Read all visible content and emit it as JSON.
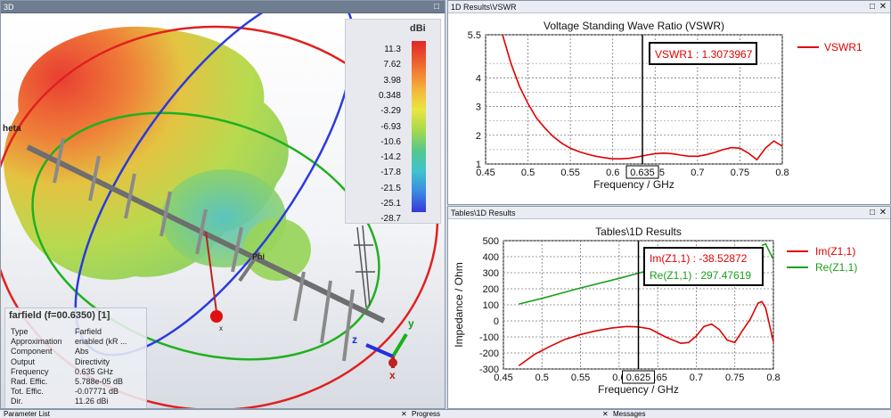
{
  "panes": {
    "view3d": {
      "title": "3D",
      "restore_icon": "□"
    },
    "vswr": {
      "title": "1D Results\\VSWR",
      "restore_icon": "□",
      "close_icon": "✕"
    },
    "tables": {
      "title": "Tables\\1D Results",
      "restore_icon": "□",
      "close_icon": "✕"
    }
  },
  "legend": {
    "unit": "dBi",
    "ticks": [
      "11.3",
      "7.62",
      "3.98",
      "0.348",
      "-3.29",
      "-6.93",
      "-10.6",
      "-14.2",
      "-17.8",
      "-21.5",
      "-25.1",
      "-28.7"
    ]
  },
  "scene_labels": {
    "theta": "heta",
    "phi": "Phi",
    "x_axis": "x",
    "y_axis": "y",
    "z_axis": "z",
    "x_small": "x"
  },
  "farfield": {
    "title": "farfield (f=00.6350) [1]",
    "rows": [
      {
        "label": "Type",
        "value": "Farfield"
      },
      {
        "label": "Approximation",
        "value": "enabled (kR ..."
      },
      {
        "label": "Component",
        "value": "Abs"
      },
      {
        "label": "Output",
        "value": "Directivity"
      },
      {
        "label": "Frequency",
        "value": "0.635 GHz"
      },
      {
        "label": "Rad. Effic.",
        "value": "5.788e-05 dB"
      },
      {
        "label": "Tot. Effic.",
        "value": "-0.07771 dB"
      },
      {
        "label": "Dir.",
        "value": "11.26 dBi"
      }
    ]
  },
  "chart_data": [
    {
      "type": "line",
      "title": "Voltage Standing Wave Ratio (VSWR)",
      "xlabel": "Frequency / GHz",
      "ylabel": "",
      "xlim": [
        0.45,
        0.8
      ],
      "ylim": [
        1,
        5.5
      ],
      "xticks": [
        "0.45",
        "0.5",
        "0.55",
        "0.6",
        "0.65",
        "0.7",
        "0.75",
        "0.8"
      ],
      "yticks": [
        "1",
        "2",
        "3",
        "4",
        "5.5"
      ],
      "marker_x": 0.635,
      "marker_label": "0.635",
      "annotation": "VSWR1 : 1.3073967",
      "grid": true,
      "legend_position": "right",
      "series": [
        {
          "name": "VSWR1",
          "color": "#e00000",
          "x": [
            0.47,
            0.48,
            0.49,
            0.5,
            0.51,
            0.52,
            0.53,
            0.54,
            0.55,
            0.56,
            0.57,
            0.58,
            0.59,
            0.6,
            0.61,
            0.62,
            0.63,
            0.64,
            0.65,
            0.66,
            0.67,
            0.68,
            0.69,
            0.7,
            0.71,
            0.72,
            0.73,
            0.74,
            0.75,
            0.76,
            0.77,
            0.78,
            0.79,
            0.8
          ],
          "y": [
            5.5,
            4.5,
            3.7,
            3.1,
            2.6,
            2.25,
            1.95,
            1.72,
            1.55,
            1.43,
            1.34,
            1.27,
            1.22,
            1.18,
            1.18,
            1.2,
            1.25,
            1.31,
            1.36,
            1.38,
            1.36,
            1.31,
            1.27,
            1.27,
            1.32,
            1.4,
            1.5,
            1.57,
            1.55,
            1.38,
            1.15,
            1.55,
            1.8,
            1.62
          ]
        }
      ]
    },
    {
      "type": "line",
      "title": "Tables\\1D Results",
      "xlabel": "Frequency / GHz",
      "ylabel": "Impedance / Ohm",
      "xlim": [
        0.45,
        0.8
      ],
      "ylim": [
        -300,
        500
      ],
      "xticks": [
        "0.45",
        "0.5",
        "0.55",
        "0.6",
        "0.625",
        "0.65",
        "0.7",
        "0.75",
        "0.8"
      ],
      "yticks": [
        "-300",
        "-200",
        "-100",
        "0",
        "100",
        "200",
        "300",
        "400",
        "500"
      ],
      "marker_x": 0.625,
      "marker_label": "0.625",
      "annotations": [
        "Im(Z1,1) : -38.52872",
        "Re(Z1,1) : 297.47619"
      ],
      "grid": true,
      "legend_position": "right",
      "series": [
        {
          "name": "Im(Z1,1)",
          "color": "#e00000",
          "x": [
            0.47,
            0.49,
            0.51,
            0.53,
            0.55,
            0.57,
            0.59,
            0.61,
            0.625,
            0.64,
            0.66,
            0.68,
            0.69,
            0.7,
            0.71,
            0.72,
            0.73,
            0.74,
            0.75,
            0.76,
            0.77,
            0.78,
            0.785,
            0.79,
            0.8
          ],
          "y": [
            -280,
            -210,
            -160,
            -115,
            -85,
            -62,
            -45,
            -35,
            -38,
            -50,
            -100,
            -140,
            -135,
            -95,
            -35,
            -20,
            -55,
            -120,
            -135,
            -60,
            10,
            110,
            120,
            80,
            -130
          ]
        },
        {
          "name": "Re(Z1,1)",
          "color": "#1aa01a",
          "x": [
            0.47,
            0.5,
            0.55,
            0.6,
            0.625,
            0.635
          ],
          "y": [
            105,
            140,
            205,
            265,
            297,
            310
          ]
        },
        {
          "name": "Re(Z1,1)",
          "color": "#1aa01a",
          "x": [
            0.785,
            0.79,
            0.795,
            0.8
          ],
          "y": [
            470,
            480,
            430,
            385
          ]
        }
      ]
    }
  ],
  "bottom_tabs": [
    "Parameter List",
    "Progress",
    "Messages"
  ],
  "bottom_close": [
    "✕",
    "✕"
  ]
}
